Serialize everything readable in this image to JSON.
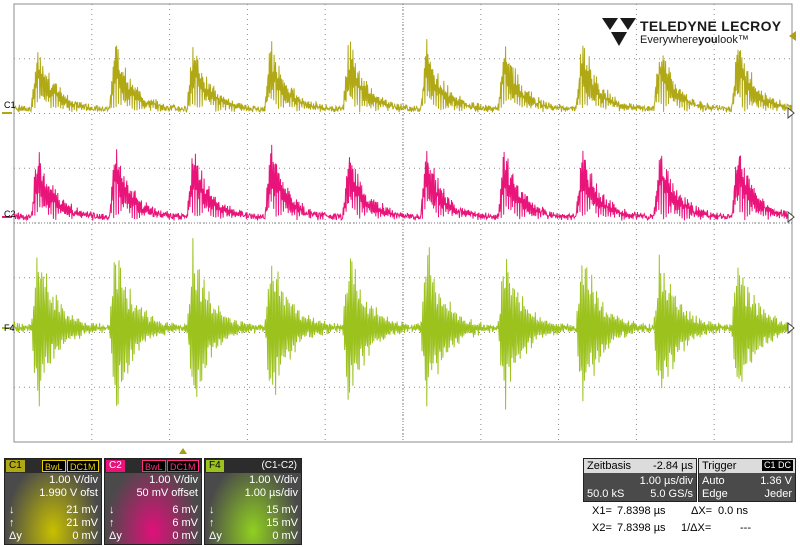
{
  "brand": {
    "line1": "TELEDYNE LECROY",
    "line2_pre": "Everywhere",
    "line2_bold": "you",
    "line2_post": "look",
    "tm": "™"
  },
  "traces": [
    {
      "name": "C1",
      "color": "#b0a814"
    },
    {
      "name": "C2",
      "color": "#e8147a"
    },
    {
      "name": "F4",
      "color": "#9cc21e"
    }
  ],
  "grid": {
    "h_divs": 10,
    "v_divs": 8,
    "color": "#8c8c8c"
  },
  "channels": [
    {
      "name": "C1",
      "name_color": "#b0a814",
      "badges": [
        "BwL",
        "DC1M"
      ],
      "badge_color": "#e8d000",
      "vdiv": "1.00 V/div",
      "offset": "1.990 V ofst",
      "rows": [
        {
          "sym": "↓",
          "val": "21 mV"
        },
        {
          "sym": "↑",
          "val": "21 mV"
        },
        {
          "sym": "Δy",
          "val": "0 mV"
        }
      ],
      "glow": "#c8c000"
    },
    {
      "name": "C2",
      "name_color": "#e8147a",
      "badges": [
        "BwL",
        "DC1M"
      ],
      "badge_color": "#ff3080",
      "vdiv": "1.00 V/div",
      "offset": "50 mV offset",
      "rows": [
        {
          "sym": "↓",
          "val": "6 mV"
        },
        {
          "sym": "↑",
          "val": "6 mV"
        },
        {
          "sym": "Δy",
          "val": "0 mV"
        }
      ],
      "glow": "#e0107a"
    },
    {
      "name": "F4",
      "name_color": "#9cc21e",
      "func": "(C1-C2)",
      "vdiv": "1.00 V/div",
      "offset": "1.00 µs/div",
      "rows": [
        {
          "sym": "↓",
          "val": "15 mV"
        },
        {
          "sym": "↑",
          "val": "15 mV"
        },
        {
          "sym": "Δy",
          "val": "0 mV"
        }
      ],
      "glow": "#90d020"
    }
  ],
  "timebase": {
    "title": "Zeitbasis",
    "delay": "-2.84 µs",
    "tdiv": "1.00 µs/div",
    "samples": "50.0 kS",
    "rate": "5.0 GS/s"
  },
  "trigger": {
    "title": "Trigger",
    "badge": "C1 DC",
    "mode": "Auto",
    "level": "1.36 V",
    "type": "Edge",
    "slope": "Jeder"
  },
  "cursors": {
    "x1_label": "X1=",
    "x1": "7.8398 µs",
    "dx_label": "ΔX=",
    "dx": "0.0 ns",
    "x2_label": "X2=",
    "x2": "7.8398 µs",
    "idx_label": "1/ΔX=",
    "idx": "---"
  }
}
